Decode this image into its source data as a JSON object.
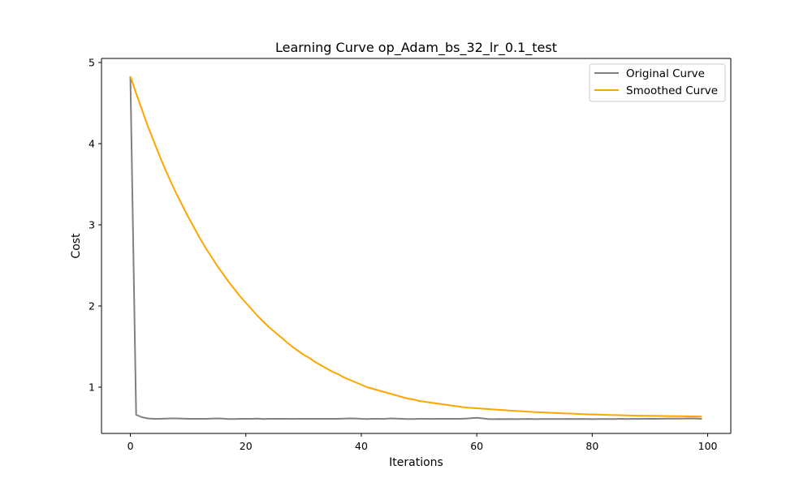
{
  "chart_data": {
    "type": "line",
    "title": "Learning Curve op_Adam_bs_32_lr_0.1_test",
    "xlabel": "Iterations",
    "ylabel": "Cost",
    "xlim": [
      -5,
      104
    ],
    "ylim": [
      0.43,
      5.05
    ],
    "xticks": [
      0,
      20,
      40,
      60,
      80,
      100
    ],
    "yticks": [
      1,
      2,
      3,
      4,
      5
    ],
    "legend": "top-right",
    "grid": false,
    "series": [
      {
        "name": "Original Curve",
        "color": "#808080",
        "x": [
          0,
          1,
          2,
          3,
          4,
          5,
          6,
          7,
          8,
          9,
          10,
          11,
          12,
          13,
          14,
          15,
          16,
          17,
          18,
          19,
          20,
          21,
          22,
          23,
          24,
          25,
          26,
          27,
          28,
          29,
          30,
          31,
          32,
          33,
          34,
          35,
          36,
          37,
          38,
          39,
          40,
          41,
          42,
          43,
          44,
          45,
          46,
          47,
          48,
          49,
          50,
          51,
          52,
          53,
          54,
          55,
          56,
          57,
          58,
          59,
          60,
          61,
          62,
          63,
          64,
          65,
          66,
          67,
          68,
          69,
          70,
          71,
          72,
          73,
          74,
          75,
          76,
          77,
          78,
          79,
          80,
          81,
          82,
          83,
          84,
          85,
          86,
          87,
          88,
          89,
          90,
          91,
          92,
          93,
          94,
          95,
          96,
          97,
          98,
          99
        ],
        "y": [
          4.83,
          0.66,
          0.63,
          0.615,
          0.61,
          0.61,
          0.612,
          0.615,
          0.615,
          0.613,
          0.61,
          0.61,
          0.61,
          0.61,
          0.612,
          0.615,
          0.612,
          0.608,
          0.608,
          0.61,
          0.61,
          0.61,
          0.612,
          0.608,
          0.61,
          0.61,
          0.61,
          0.61,
          0.609,
          0.61,
          0.61,
          0.61,
          0.61,
          0.61,
          0.61,
          0.61,
          0.61,
          0.612,
          0.615,
          0.614,
          0.61,
          0.608,
          0.61,
          0.61,
          0.609,
          0.615,
          0.612,
          0.61,
          0.608,
          0.607,
          0.61,
          0.61,
          0.609,
          0.61,
          0.61,
          0.61,
          0.61,
          0.61,
          0.612,
          0.618,
          0.622,
          0.615,
          0.608,
          0.606,
          0.607,
          0.606,
          0.607,
          0.606,
          0.607,
          0.609,
          0.606,
          0.607,
          0.607,
          0.608,
          0.607,
          0.608,
          0.609,
          0.608,
          0.609,
          0.608,
          0.606,
          0.607,
          0.608,
          0.607,
          0.608,
          0.61,
          0.608,
          0.61,
          0.609,
          0.61,
          0.611,
          0.61,
          0.611,
          0.612,
          0.613,
          0.612,
          0.614,
          0.615,
          0.614,
          0.61
        ]
      },
      {
        "name": "Smoothed Curve",
        "color": "#ffa500",
        "x": [
          0,
          1,
          2,
          3,
          4,
          5,
          6,
          7,
          8,
          9,
          10,
          11,
          12,
          13,
          14,
          15,
          16,
          17,
          18,
          19,
          20,
          21,
          22,
          23,
          24,
          25,
          26,
          27,
          28,
          29,
          30,
          31,
          32,
          33,
          34,
          35,
          36,
          37,
          38,
          39,
          40,
          41,
          42,
          43,
          44,
          45,
          46,
          47,
          48,
          49,
          50,
          51,
          52,
          53,
          54,
          55,
          56,
          57,
          58,
          59,
          60,
          61,
          62,
          63,
          64,
          65,
          66,
          67,
          68,
          69,
          70,
          71,
          72,
          73,
          74,
          75,
          76,
          77,
          78,
          79,
          80,
          81,
          82,
          83,
          84,
          85,
          86,
          87,
          88,
          89,
          90,
          91,
          92,
          93,
          94,
          95,
          96,
          97,
          98,
          99
        ],
        "y": [
          4.83,
          4.62,
          4.42,
          4.22,
          4.04,
          3.86,
          3.69,
          3.53,
          3.38,
          3.24,
          3.1,
          2.97,
          2.84,
          2.72,
          2.61,
          2.5,
          2.4,
          2.3,
          2.21,
          2.12,
          2.04,
          1.96,
          1.88,
          1.81,
          1.74,
          1.68,
          1.62,
          1.56,
          1.5,
          1.45,
          1.4,
          1.36,
          1.31,
          1.27,
          1.23,
          1.19,
          1.16,
          1.12,
          1.09,
          1.06,
          1.03,
          1.0,
          0.98,
          0.96,
          0.94,
          0.92,
          0.9,
          0.88,
          0.86,
          0.85,
          0.83,
          0.82,
          0.81,
          0.8,
          0.79,
          0.78,
          0.77,
          0.76,
          0.75,
          0.745,
          0.74,
          0.735,
          0.73,
          0.725,
          0.72,
          0.715,
          0.71,
          0.706,
          0.702,
          0.698,
          0.694,
          0.69,
          0.687,
          0.684,
          0.681,
          0.678,
          0.675,
          0.672,
          0.669,
          0.666,
          0.664,
          0.662,
          0.66,
          0.658,
          0.656,
          0.654,
          0.652,
          0.65,
          0.649,
          0.648,
          0.647,
          0.646,
          0.645,
          0.644,
          0.643,
          0.642,
          0.641,
          0.64,
          0.639,
          0.638
        ]
      }
    ]
  }
}
